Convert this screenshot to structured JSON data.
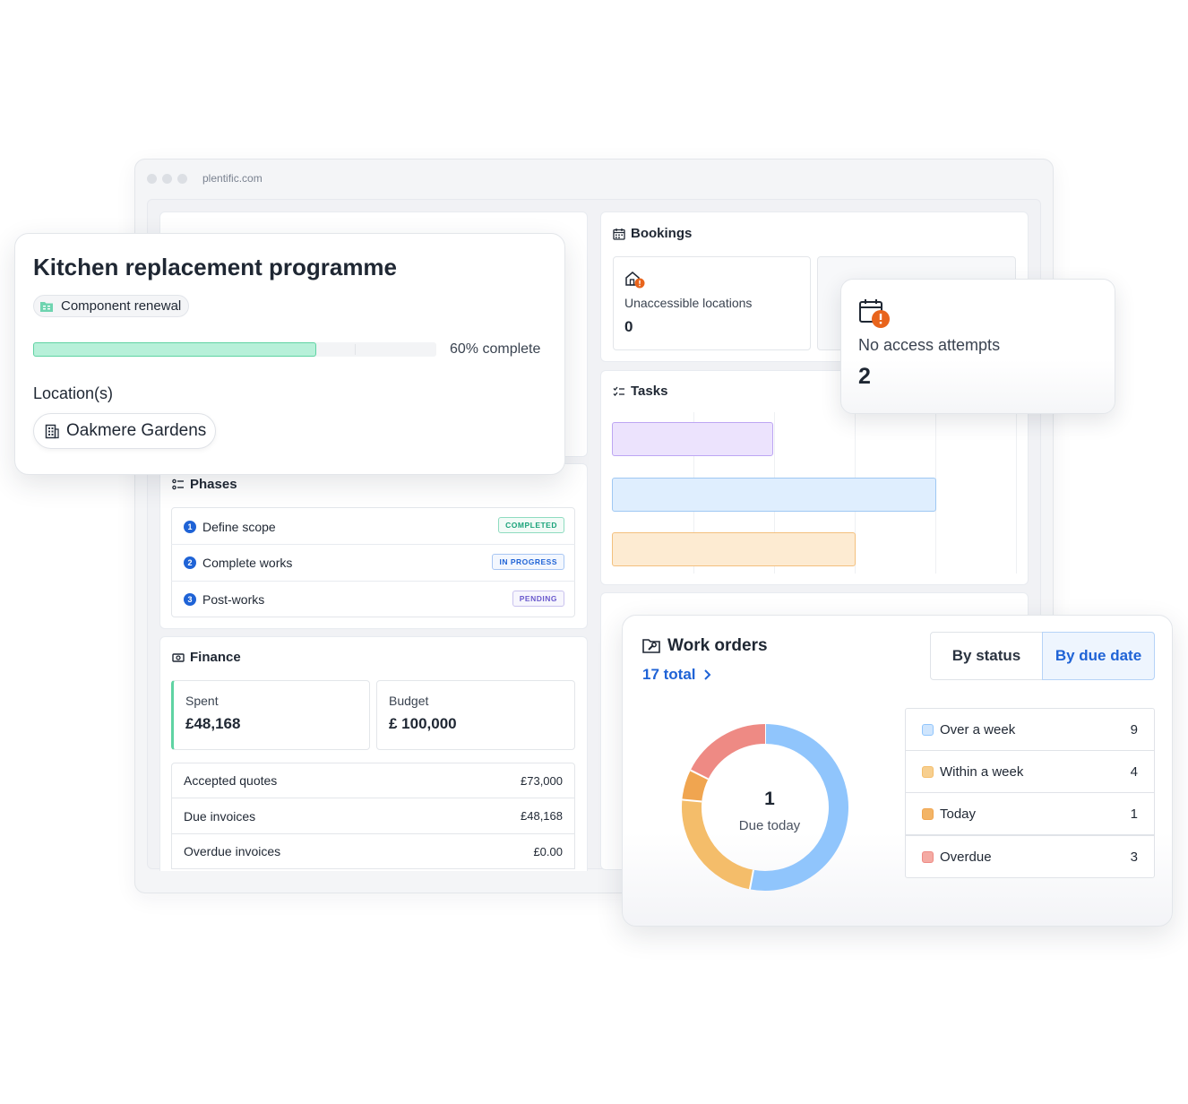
{
  "browser": {
    "url": "plentific.com"
  },
  "project": {
    "title": "Kitchen replacement programme",
    "category": "Component renewal",
    "progress_label": "60% complete",
    "progress_fraction": 0.6,
    "locations_label": "Location(s)",
    "location": "Oakmere Gardens"
  },
  "phases": {
    "title": "Phases",
    "items": [
      {
        "num": "1",
        "label": "Define scope",
        "status": "COMPLETED",
        "color": "#1aa37a"
      },
      {
        "num": "2",
        "label": "Complete works",
        "status": "IN PROGRESS",
        "color": "#1f63d6"
      },
      {
        "num": "3",
        "label": "Post-works",
        "status": "PENDING",
        "color": "#6a5acd"
      }
    ]
  },
  "finance": {
    "title": "Finance",
    "spent_label": "Spent",
    "spent_value": "£48,168",
    "budget_label": "Budget",
    "budget_value": "£ 100,000",
    "rows": [
      {
        "label": "Accepted quotes",
        "amount": "£73,000"
      },
      {
        "label": "Due invoices",
        "amount": "£48,168"
      },
      {
        "label": "Overdue invoices",
        "amount": "£0.00"
      }
    ]
  },
  "bookings": {
    "title": "Bookings",
    "unaccessible_label": "Unaccessible locations",
    "unaccessible_value": "0",
    "no_access_label": "No access attempts",
    "no_access_value": "2"
  },
  "tasks": {
    "title": "Tasks"
  },
  "work_orders": {
    "title": "Work orders",
    "total_label": "17 total",
    "toggle": {
      "by_status": "By status",
      "by_due_date": "By due date",
      "active": "by_due_date"
    },
    "center_value": "1",
    "center_label": "Due today",
    "legend": [
      {
        "label": "Over a week",
        "count": "9",
        "color": "#90c5fc"
      },
      {
        "label": "Within a week",
        "count": "4",
        "color": "#f4bd6a"
      },
      {
        "label": "Today",
        "count": "1",
        "color": "#f0a550"
      },
      {
        "label": "Overdue",
        "count": "3",
        "color": "#ee8a84"
      }
    ]
  },
  "chart_data": {
    "type": "pie",
    "categories": [
      "Over a week",
      "Within a week",
      "Today",
      "Overdue"
    ],
    "values": [
      9,
      4,
      1,
      3
    ],
    "colors": [
      "#90c5fc",
      "#f4bd6a",
      "#f0a550",
      "#ee8a84"
    ],
    "title": ""
  }
}
